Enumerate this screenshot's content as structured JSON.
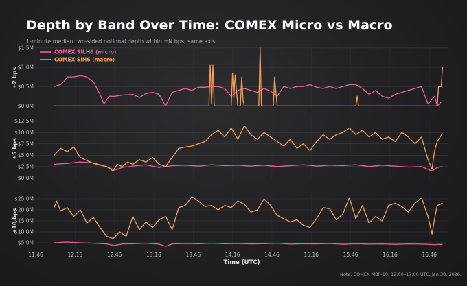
{
  "header": {
    "title": "Depth by Band Over Time: COMEX Micro vs Macro",
    "subtitle": "1-minute median two-sided notional depth within ±N bps, same axis."
  },
  "footer": {
    "note": "Note: COMEX MBP-10, 12:00–17:00 UTC, Jan 30, 2026."
  },
  "colors": {
    "micro": "#e8609a",
    "macro": "#f0a05a"
  },
  "chart_data": [
    {
      "type": "line",
      "ylabel": "±2 bps",
      "xlabel": "",
      "xlim": [
        "11:46",
        "17:00"
      ],
      "ylim": [
        -0.1,
        1.55
      ],
      "yticks": [
        0,
        0.5,
        1.0,
        1.5
      ],
      "ytick_labels": [
        "$0.0M",
        "$0.5M",
        "$1.0M",
        "$1.5M"
      ],
      "legend": "top-left",
      "series": [
        {
          "name": "COMEX SILH6 (micro)",
          "key": "micro",
          "x": [
            "12:00",
            "12:05",
            "12:08",
            "12:10",
            "12:15",
            "12:20",
            "12:25",
            "12:30",
            "12:35",
            "12:38",
            "12:42",
            "12:46",
            "12:52",
            "13:00",
            "13:05",
            "13:10",
            "13:15",
            "13:20",
            "13:25",
            "13:30",
            "13:35",
            "13:40",
            "13:45",
            "13:50",
            "13:55",
            "14:00",
            "14:05",
            "14:10",
            "14:15",
            "14:20",
            "14:25",
            "14:30",
            "14:35",
            "14:40",
            "14:45",
            "14:50",
            "14:55",
            "15:00",
            "15:05",
            "15:10",
            "15:15",
            "15:20",
            "15:25",
            "15:30",
            "15:35",
            "15:40",
            "15:45",
            "15:50",
            "15:55",
            "16:00",
            "16:05",
            "16:10",
            "16:15",
            "16:20",
            "16:25",
            "16:30",
            "16:35",
            "16:40",
            "16:45",
            "16:50",
            "16:52",
            "16:55"
          ],
          "y": [
            0.5,
            0.55,
            0.65,
            0.75,
            0.75,
            0.78,
            0.75,
            0.62,
            0.3,
            0.05,
            0.25,
            0.25,
            0.28,
            0.3,
            0.22,
            0.32,
            0.35,
            0.3,
            0.0,
            0.35,
            0.4,
            0.45,
            0.4,
            0.48,
            0.48,
            0.5,
            0.5,
            0.45,
            0.25,
            0.4,
            0.45,
            0.4,
            0.35,
            0.45,
            0.38,
            0.25,
            0.5,
            0.45,
            0.5,
            0.5,
            0.55,
            0.48,
            0.45,
            0.5,
            0.45,
            0.5,
            0.55,
            0.55,
            0.45,
            0.3,
            0.4,
            0.25,
            0.2,
            0.3,
            0.35,
            0.4,
            0.45,
            0.5,
            0.05,
            0.25,
            0.0,
            0.1
          ]
        },
        {
          "name": "COMEX SIH6 (macro)",
          "key": "macro",
          "x": [
            "12:00",
            "13:58",
            "13:59",
            "14:00",
            "14:01",
            "14:02",
            "14:15",
            "14:16",
            "14:17",
            "14:18",
            "14:20",
            "14:22",
            "14:23",
            "14:24",
            "14:25",
            "14:30",
            "14:36",
            "14:37",
            "14:38",
            "14:45",
            "14:47",
            "14:48",
            "14:50",
            "15:00",
            "15:50",
            "15:51",
            "15:52",
            "16:30",
            "16:52",
            "16:53",
            "16:55",
            "16:56"
          ],
          "y": [
            0,
            0,
            1.05,
            0.05,
            1.05,
            0,
            0,
            0.85,
            0.2,
            0.8,
            0,
            0,
            0.75,
            0.15,
            0,
            0,
            0,
            1.5,
            0,
            0,
            0,
            0.75,
            0,
            0,
            0,
            0.25,
            0,
            0,
            0,
            0.5,
            0.5,
            1.0
          ]
        }
      ]
    },
    {
      "type": "line",
      "ylabel": "±5 bps",
      "xlabel": "",
      "xlim": [
        "11:46",
        "17:00"
      ],
      "ylim": [
        -0.4,
        13.2
      ],
      "yticks": [
        0,
        2.5,
        5.0,
        7.5,
        10.0,
        12.5
      ],
      "ytick_labels": [
        "$0.0M",
        "$2.5M",
        "$5.0M",
        "$7.5M",
        "$10.0M",
        "$12.5M"
      ],
      "series": [
        {
          "name": "COMEX SILH6 (micro)",
          "key": "micro",
          "x": [
            "12:00",
            "12:10",
            "12:20",
            "12:30",
            "12:40",
            "12:46",
            "12:52",
            "13:00",
            "13:10",
            "13:20",
            "13:30",
            "13:40",
            "13:50",
            "14:00",
            "14:10",
            "14:20",
            "14:30",
            "14:40",
            "14:50",
            "15:00",
            "15:10",
            "15:20",
            "15:30",
            "15:40",
            "15:50",
            "16:00",
            "16:10",
            "16:20",
            "16:30",
            "16:40",
            "16:48",
            "16:52",
            "16:56"
          ],
          "y": [
            3.0,
            3.2,
            3.5,
            3.3,
            2.5,
            1.7,
            2.3,
            2.6,
            2.9,
            2.3,
            2.7,
            2.8,
            2.6,
            2.9,
            2.7,
            2.8,
            2.6,
            2.8,
            2.5,
            2.7,
            2.9,
            2.6,
            2.8,
            2.7,
            2.9,
            2.5,
            2.8,
            2.6,
            2.4,
            2.5,
            1.5,
            2.3,
            2.5
          ]
        },
        {
          "name": "COMEX SIH6 (macro)",
          "key": "macro",
          "x": [
            "12:00",
            "12:05",
            "12:10",
            "12:15",
            "12:20",
            "12:25",
            "12:30",
            "12:35",
            "12:40",
            "12:45",
            "12:48",
            "12:52",
            "12:56",
            "13:00",
            "13:05",
            "13:10",
            "13:15",
            "13:20",
            "13:25",
            "13:30",
            "13:35",
            "13:40",
            "13:45",
            "13:50",
            "13:55",
            "14:00",
            "14:05",
            "14:10",
            "14:15",
            "14:20",
            "14:25",
            "14:30",
            "14:35",
            "14:40",
            "14:45",
            "14:50",
            "14:55",
            "15:00",
            "15:05",
            "15:10",
            "15:15",
            "15:20",
            "15:25",
            "15:30",
            "15:35",
            "15:40",
            "15:45",
            "15:50",
            "15:55",
            "16:00",
            "16:05",
            "16:10",
            "16:15",
            "16:20",
            "16:25",
            "16:30",
            "16:35",
            "16:40",
            "16:45",
            "16:48",
            "16:50",
            "16:52",
            "16:56"
          ],
          "y": [
            5.0,
            6.5,
            5.8,
            6.8,
            4.5,
            3.8,
            3.2,
            2.8,
            2.5,
            1.5,
            3.0,
            2.5,
            3.5,
            3.0,
            4.0,
            3.5,
            4.5,
            3.0,
            2.5,
            4.5,
            6.5,
            6.8,
            7.0,
            7.5,
            8.0,
            9.5,
            10.5,
            9.0,
            11.0,
            8.5,
            11.5,
            9.5,
            8.5,
            10.0,
            9.0,
            8.0,
            7.0,
            8.5,
            6.5,
            7.5,
            6.0,
            8.0,
            9.5,
            8.5,
            9.5,
            10.0,
            11.0,
            9.5,
            10.5,
            9.0,
            10.0,
            8.5,
            9.0,
            8.0,
            10.0,
            9.0,
            7.5,
            9.0,
            4.0,
            2.0,
            6.0,
            8.0,
            9.8
          ]
        }
      ]
    },
    {
      "type": "line",
      "ylabel": "±10 bps",
      "xlabel": "Time (UTC)",
      "xlim": [
        "11:46",
        "17:00"
      ],
      "ylim": [
        2.5,
        27.5
      ],
      "yticks": [
        5,
        10,
        15,
        20,
        25
      ],
      "ytick_labels": [
        "$5.0M",
        "$10.0M",
        "$15.0M",
        "$20.0M",
        "$25.0M"
      ],
      "xticks": [
        "11:46",
        "12:16",
        "12:46",
        "13:16",
        "13:46",
        "14:16",
        "14:46",
        "15:16",
        "15:46",
        "16:16",
        "16:46"
      ],
      "series": [
        {
          "name": "COMEX SILH6 (micro)",
          "key": "micro",
          "x": [
            "12:00",
            "12:10",
            "12:20",
            "12:30",
            "12:40",
            "12:46",
            "12:52",
            "13:00",
            "13:10",
            "13:20",
            "13:25",
            "13:30",
            "13:40",
            "13:50",
            "14:00",
            "14:10",
            "14:20",
            "14:30",
            "14:40",
            "14:50",
            "15:00",
            "15:10",
            "15:20",
            "15:30",
            "15:40",
            "15:50",
            "16:00",
            "16:10",
            "16:20",
            "16:30",
            "16:40",
            "16:50",
            "16:56"
          ],
          "y": [
            5.0,
            5.3,
            5.0,
            4.8,
            4.5,
            3.8,
            4.5,
            4.6,
            4.8,
            4.4,
            3.4,
            4.5,
            4.7,
            4.6,
            4.8,
            4.6,
            4.7,
            4.5,
            4.6,
            4.8,
            4.4,
            4.6,
            4.5,
            4.7,
            4.3,
            4.6,
            4.4,
            4.5,
            4.3,
            4.5,
            4.4,
            4.2,
            4.3
          ]
        },
        {
          "name": "COMEX SIH6 (macro)",
          "key": "macro",
          "x": [
            "12:00",
            "12:02",
            "12:05",
            "12:10",
            "12:15",
            "12:20",
            "12:25",
            "12:30",
            "12:35",
            "12:40",
            "12:45",
            "12:50",
            "12:55",
            "13:00",
            "13:05",
            "13:10",
            "13:15",
            "13:20",
            "13:25",
            "13:30",
            "13:35",
            "13:40",
            "13:45",
            "13:50",
            "13:55",
            "14:00",
            "14:05",
            "14:10",
            "14:15",
            "14:20",
            "14:25",
            "14:30",
            "14:35",
            "14:40",
            "14:45",
            "14:50",
            "14:55",
            "15:00",
            "15:05",
            "15:10",
            "15:15",
            "15:20",
            "15:25",
            "15:30",
            "15:35",
            "15:40",
            "15:45",
            "15:50",
            "15:55",
            "16:00",
            "16:05",
            "16:10",
            "16:15",
            "16:20",
            "16:25",
            "16:30",
            "16:35",
            "16:40",
            "16:45",
            "16:48",
            "16:50",
            "16:52",
            "16:56"
          ],
          "y": [
            21.0,
            24.0,
            19.5,
            21.0,
            17.0,
            20.0,
            14.0,
            16.5,
            12.0,
            8.0,
            7.0,
            10.0,
            8.0,
            17.0,
            11.0,
            14.5,
            12.0,
            15.5,
            17.0,
            11.0,
            21.0,
            22.0,
            26.0,
            24.0,
            21.5,
            22.0,
            20.0,
            22.0,
            21.0,
            24.0,
            22.5,
            19.0,
            20.0,
            25.0,
            22.0,
            17.5,
            16.0,
            14.5,
            15.5,
            13.0,
            12.0,
            16.0,
            21.0,
            20.5,
            15.5,
            18.0,
            25.5,
            16.0,
            22.0,
            14.0,
            17.0,
            15.0,
            22.0,
            23.0,
            21.5,
            19.0,
            23.0,
            25.5,
            17.0,
            9.0,
            16.0,
            22.0,
            23.0
          ]
        }
      ]
    }
  ]
}
